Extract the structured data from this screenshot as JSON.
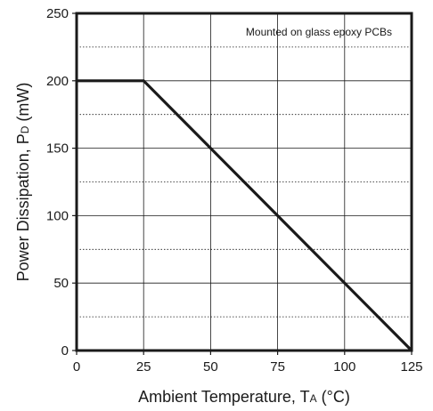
{
  "chart_data": {
    "type": "line",
    "title": "",
    "xlabel_main": "Ambient Temperature, T",
    "xlabel_sub": "A",
    "xlabel_unit": " (°C)",
    "ylabel_main": "Power Dissipation, P",
    "ylabel_sub": "D",
    "ylabel_unit": " (mW)",
    "xlim": [
      0,
      125
    ],
    "ylim": [
      0,
      250
    ],
    "x_ticks": [
      0,
      25,
      50,
      75,
      100,
      125
    ],
    "y_ticks": [
      0,
      50,
      100,
      150,
      200,
      250
    ],
    "x_tick_labels": [
      "0",
      "25",
      "50",
      "75",
      "100",
      "125"
    ],
    "y_tick_labels": [
      "0",
      "50",
      "100",
      "150",
      "200",
      "250"
    ],
    "minor_y_grid": [
      25,
      75,
      125,
      175,
      225
    ],
    "grid": true,
    "annotation": "Mounted on glass epoxy PCBs",
    "series": [
      {
        "x": [
          0,
          25,
          125
        ],
        "y": [
          200,
          200,
          0
        ]
      }
    ],
    "colors": {
      "line": "#1a1a1a",
      "grid": "#1a1a1a",
      "frame": "#1a1a1a"
    }
  }
}
